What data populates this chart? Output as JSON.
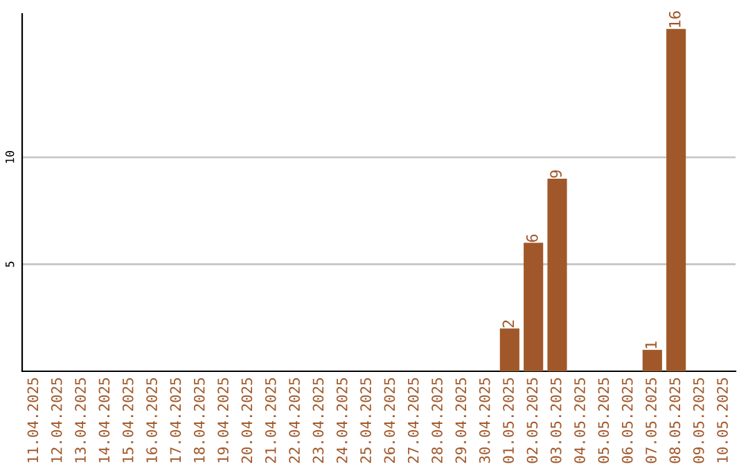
{
  "chart_data": {
    "type": "bar",
    "categories": [
      "11.04.2025",
      "12.04.2025",
      "13.04.2025",
      "14.04.2025",
      "15.04.2025",
      "16.04.2025",
      "17.04.2025",
      "18.04.2025",
      "19.04.2025",
      "20.04.2025",
      "21.04.2025",
      "22.04.2025",
      "23.04.2025",
      "24.04.2025",
      "25.04.2025",
      "26.04.2025",
      "27.04.2025",
      "28.04.2025",
      "29.04.2025",
      "30.04.2025",
      "01.05.2025",
      "02.05.2025",
      "03.05.2025",
      "04.05.2025",
      "05.05.2025",
      "06.05.2025",
      "07.05.2025",
      "08.05.2025",
      "09.05.2025",
      "10.05.2025"
    ],
    "values": [
      0,
      0,
      0,
      0,
      0,
      0,
      0,
      0,
      0,
      0,
      0,
      0,
      0,
      0,
      0,
      0,
      0,
      0,
      0,
      0,
      2,
      6,
      9,
      0,
      0,
      0,
      1,
      16,
      0,
      0
    ],
    "value_labels": [
      null,
      null,
      null,
      null,
      null,
      null,
      null,
      null,
      null,
      null,
      null,
      null,
      null,
      null,
      null,
      null,
      null,
      null,
      null,
      null,
      "2",
      "6",
      "9",
      null,
      null,
      null,
      "1",
      "16",
      null,
      null
    ],
    "color": "#a0582a",
    "ylim": [
      0,
      16.7
    ],
    "yticks": [
      5,
      10
    ],
    "grid": "y",
    "legend": false
  }
}
